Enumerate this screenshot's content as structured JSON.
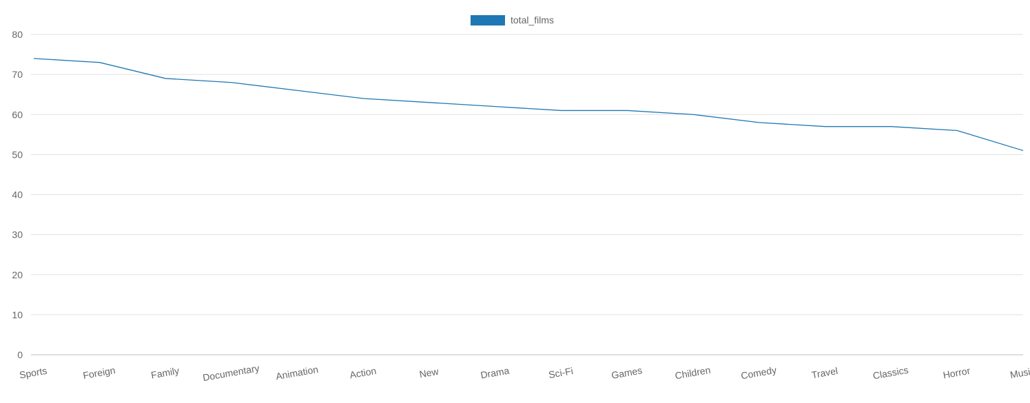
{
  "chart_data": {
    "type": "line",
    "categories": [
      "Sports",
      "Foreign",
      "Family",
      "Documentary",
      "Animation",
      "Action",
      "New",
      "Drama",
      "Sci-Fi",
      "Games",
      "Children",
      "Comedy",
      "Travel",
      "Classics",
      "Horror",
      "Music"
    ],
    "series": [
      {
        "name": "total_films",
        "values": [
          74,
          73,
          69,
          68,
          66,
          64,
          63,
          62,
          61,
          61,
          60,
          58,
          57,
          57,
          56,
          51
        ]
      }
    ],
    "ylim": [
      0,
      80
    ],
    "yticks": [
      0,
      10,
      20,
      30,
      40,
      50,
      60,
      70,
      80
    ],
    "grid": true,
    "legend_position": "top-center",
    "colors": {
      "series": "#1f77b4",
      "legend_swatch": "#1f77b4",
      "grid": "#e1e1e1",
      "text": "#666666"
    }
  }
}
